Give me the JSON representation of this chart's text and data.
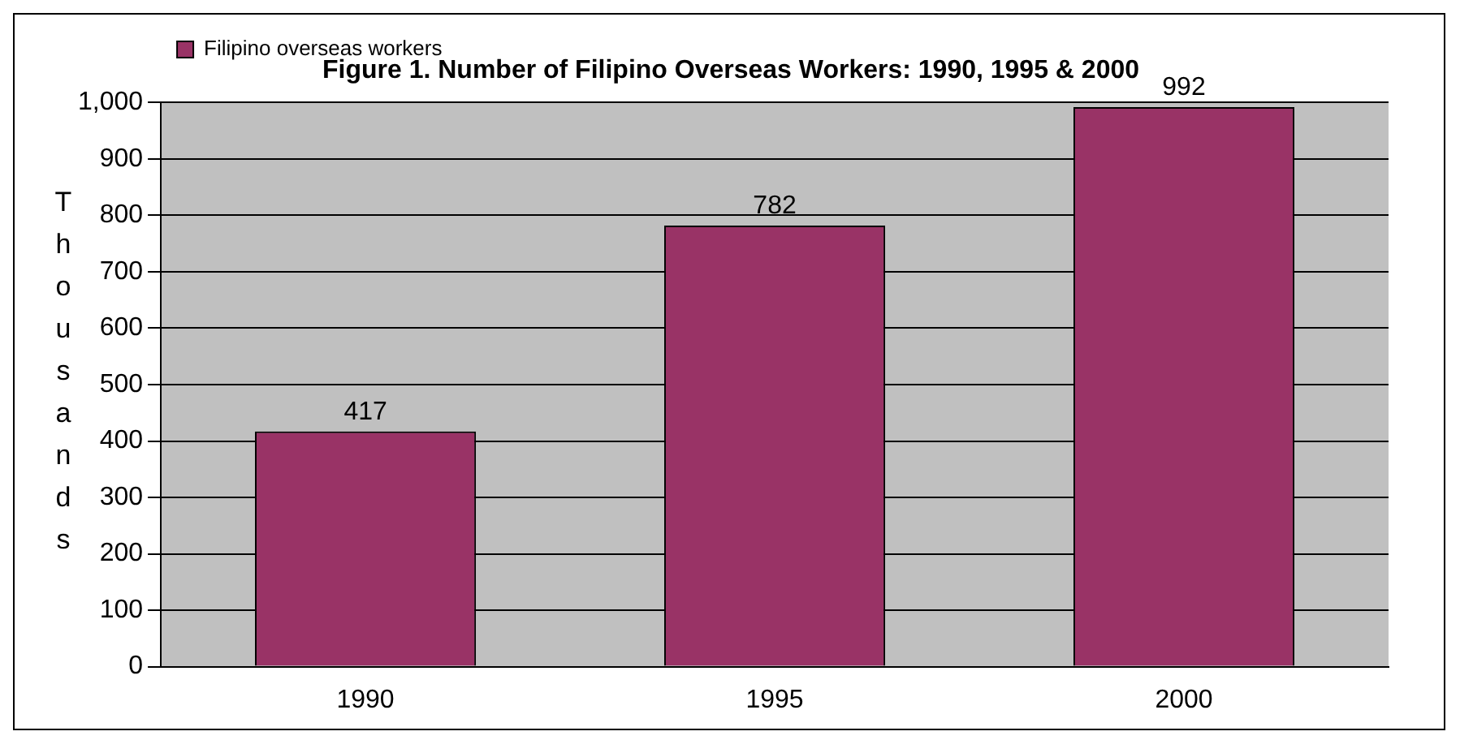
{
  "chart_data": {
    "type": "bar",
    "title": "Figure 1. Number of Filipino Overseas Workers: 1990, 1995 & 2000",
    "ylabel": "Thousands",
    "categories": [
      "1990",
      "1995",
      "2000"
    ],
    "series": [
      {
        "name": "Filipino overseas workers",
        "color": "#993366",
        "values": [
          417,
          782,
          992
        ]
      }
    ],
    "ylim": [
      0,
      1000
    ],
    "yticks": [
      0,
      100,
      200,
      300,
      400,
      500,
      600,
      700,
      800,
      900,
      {
        "value": 1000,
        "label": "1,000"
      }
    ],
    "grid": "y",
    "legend": "top left",
    "data_labels": true
  }
}
